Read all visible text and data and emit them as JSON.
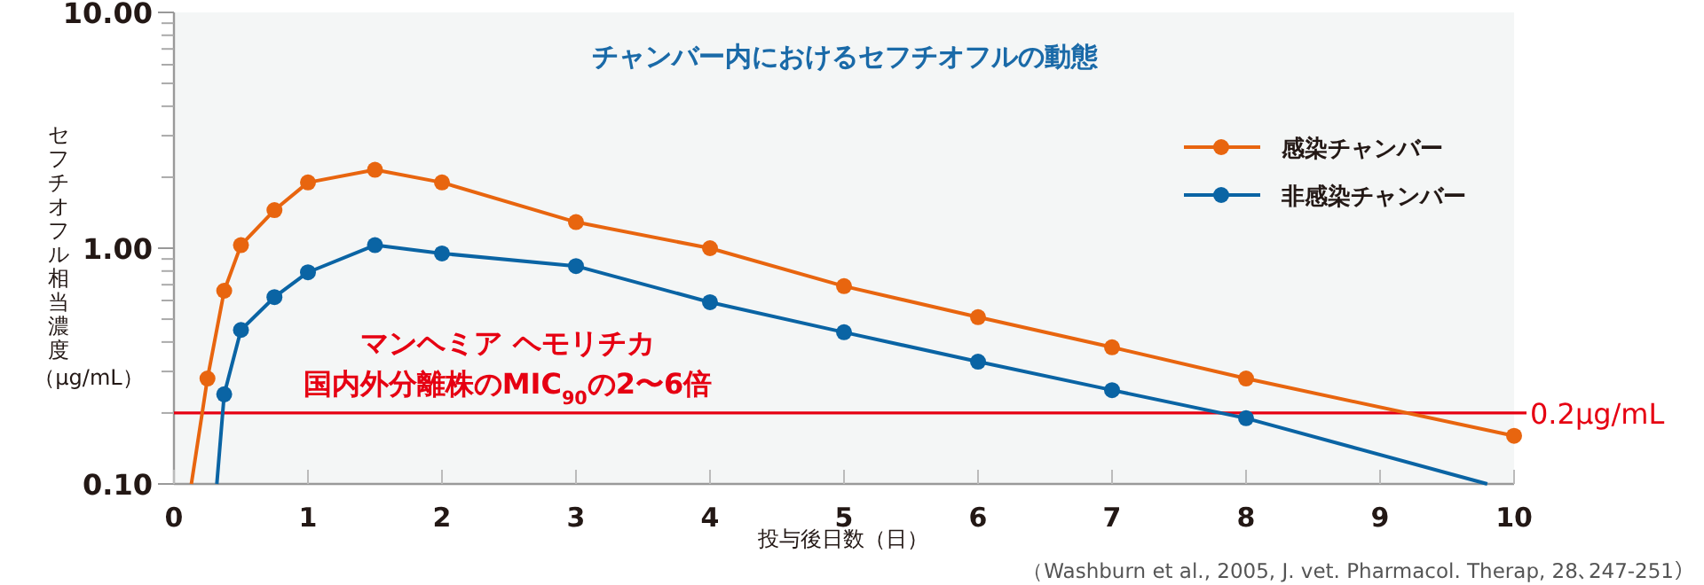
{
  "chart_data": {
    "type": "line",
    "title": "チャンバー内におけるセフチオフルの動態",
    "xlabel": "投与後日数（日）",
    "ylabel": "セフチオフル相当濃度（μg/mL）",
    "log": "y",
    "xlim": [
      0,
      10
    ],
    "ylim": [
      0.1,
      10
    ],
    "xticks": [
      0,
      1,
      2,
      3,
      4,
      5,
      6,
      7,
      8,
      9,
      10
    ],
    "yticks": [
      {
        "value": 0.1,
        "label": "0.10"
      },
      {
        "value": 1,
        "label": "1.00"
      },
      {
        "value": 10,
        "label": "10.00"
      }
    ],
    "grid": false,
    "legend": "top right",
    "marker": "circle",
    "line_style": "solid",
    "series": [
      {
        "name": "感染チャンバー",
        "color": "#e8650f",
        "x": [
          0.13,
          0.25,
          0.375,
          0.5,
          0.75,
          1,
          1.5,
          2,
          3,
          4,
          5,
          6,
          7,
          8,
          10
        ],
        "values": [
          0.1,
          0.28,
          0.66,
          1.03,
          1.45,
          1.9,
          2.15,
          1.9,
          1.29,
          1.0,
          0.69,
          0.51,
          0.38,
          0.28,
          0.16
        ]
      },
      {
        "name": "非感染チャンバー",
        "color": "#0a64a4",
        "x": [
          0.32,
          0.375,
          0.5,
          0.75,
          1,
          1.5,
          2,
          3,
          4,
          5,
          6,
          7,
          8,
          9.8
        ],
        "values": [
          0.1,
          0.24,
          0.45,
          0.62,
          0.79,
          1.03,
          0.95,
          0.84,
          0.59,
          0.44,
          0.33,
          0.25,
          0.19,
          0.1
        ]
      }
    ],
    "ref_lines": [
      {
        "axis": "y",
        "value": 0.2,
        "label": "0.2μg/mL",
        "color": "#e60012"
      }
    ],
    "annotations": [
      "マンヘミア ヘモリチカ",
      "国内外分離株のMIC$_{90}$の2〜6倍",
      "（Washburn et al., 2005, J. vet. Pharmacol. Therap, 28､247-251）"
    ]
  }
}
